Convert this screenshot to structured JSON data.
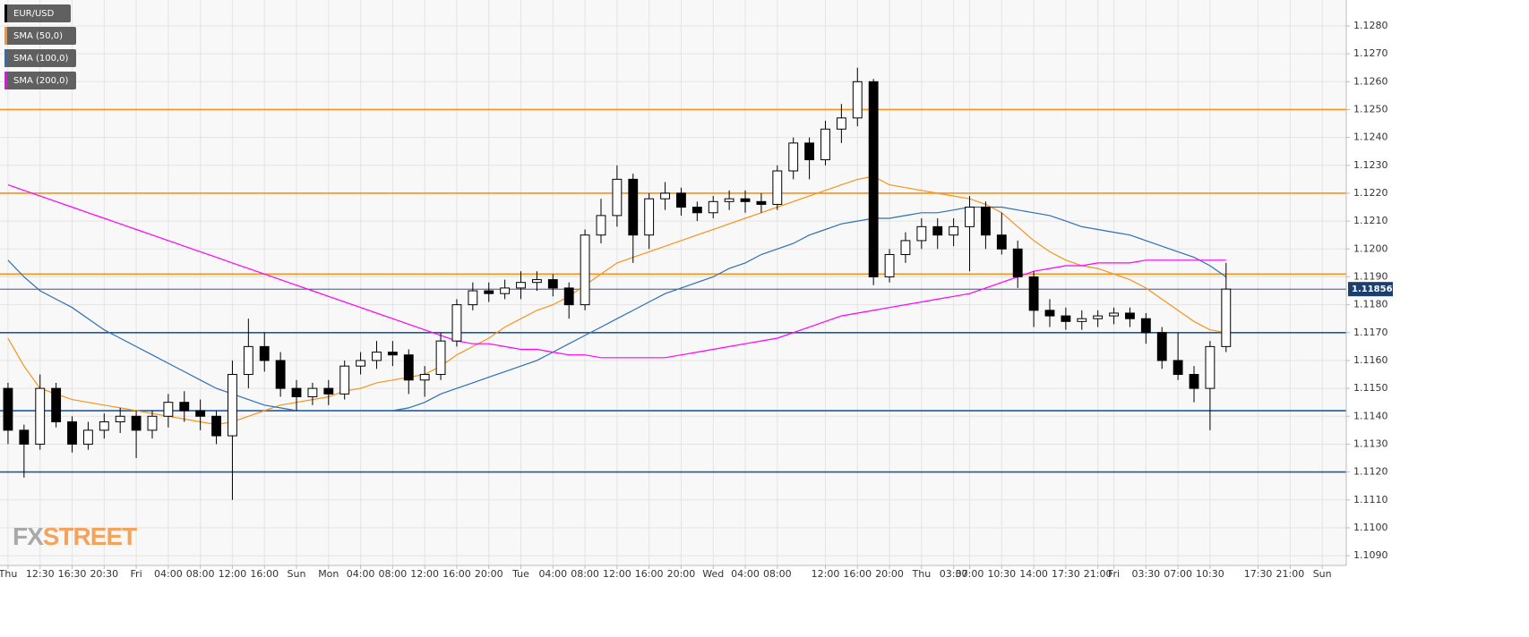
{
  "chart_data": {
    "type": "candlestick",
    "categories": [
      "Thu",
      null,
      "12:30",
      null,
      "16:30",
      null,
      "20:30",
      null,
      "Fri",
      null,
      "04:00",
      null,
      "08:00",
      null,
      "12:00",
      null,
      "16:00",
      null,
      "Sun",
      null,
      "Mon",
      null,
      "04:00",
      null,
      "08:00",
      null,
      "12:00",
      null,
      "16:00",
      null,
      "20:00",
      null,
      "Tue",
      null,
      "04:00",
      null,
      "08:00",
      null,
      "12:00",
      null,
      "16:00",
      null,
      "20:00",
      null,
      "Wed",
      null,
      "04:00",
      null,
      "08:00",
      null,
      null,
      "12:00",
      null,
      "16:00",
      null,
      "20:00",
      null,
      "Thu",
      null,
      "03:30",
      "07:00",
      null,
      "10:30",
      null,
      "14:00",
      null,
      "17:30",
      null,
      "21:00",
      "Fri",
      null,
      "03:30",
      null,
      "07:00",
      null,
      "10:30",
      null,
      null,
      "17:30",
      null,
      "21:00",
      null,
      "Sun",
      null
    ],
    "series": [
      {
        "name": "EUR/USD",
        "color": "#000000",
        "open": [
          1.115,
          1.1135,
          1.113,
          1.115,
          1.1138,
          1.113,
          1.1135,
          1.1138,
          1.114,
          1.1135,
          1.114,
          1.1145,
          1.1142,
          1.114,
          1.1133,
          1.1155,
          1.1165,
          1.116,
          1.115,
          1.1147,
          1.115,
          1.1148,
          1.1158,
          1.116,
          1.1163,
          1.1162,
          1.1153,
          1.1155,
          1.1167,
          1.118,
          1.1185,
          1.1184,
          1.1186,
          1.1188,
          1.1189,
          1.1186,
          1.118,
          1.1205,
          1.1212,
          1.1225,
          1.1205,
          1.1218,
          1.122,
          1.1215,
          1.1213,
          1.1217,
          1.1218,
          1.1217,
          1.1216,
          1.1228,
          1.1238,
          1.1232,
          1.1243,
          1.1247,
          1.126,
          1.119,
          1.1198,
          1.1203,
          1.1208,
          1.1205,
          1.1208,
          1.1215,
          1.1205,
          1.12,
          1.119,
          1.1178,
          1.1176,
          1.1174,
          1.1175,
          1.1176,
          1.1177,
          1.1175,
          1.117,
          1.116,
          1.1155,
          1.115,
          1.1165,
          null,
          null,
          null,
          null,
          null,
          null,
          null
        ],
        "high": [
          1.1152,
          1.1137,
          1.1155,
          1.1152,
          1.114,
          1.1138,
          1.1141,
          1.1143,
          1.1142,
          1.1142,
          1.1148,
          1.1149,
          1.1146,
          1.1142,
          1.116,
          1.1175,
          1.117,
          1.1163,
          1.1153,
          1.1152,
          1.1153,
          1.116,
          1.1163,
          1.1167,
          1.1167,
          1.1164,
          1.1158,
          1.117,
          1.1182,
          1.1188,
          1.1188,
          1.1189,
          1.1192,
          1.1192,
          1.1191,
          1.1188,
          1.1207,
          1.1218,
          1.123,
          1.1227,
          1.122,
          1.1224,
          1.1222,
          1.1217,
          1.1219,
          1.1221,
          1.1221,
          1.122,
          1.123,
          1.124,
          1.124,
          1.1246,
          1.1252,
          1.1265,
          1.1261,
          1.12,
          1.1206,
          1.1211,
          1.1211,
          1.1211,
          1.1219,
          1.1217,
          1.1213,
          1.1203,
          1.1192,
          1.1182,
          1.1179,
          1.1178,
          1.1178,
          1.1179,
          1.1179,
          1.1177,
          1.1172,
          1.117,
          1.1158,
          1.1167,
          1.1195,
          null,
          null,
          null,
          null,
          null,
          null,
          null
        ],
        "low": [
          1.113,
          1.1118,
          1.1128,
          1.1136,
          1.1127,
          1.1128,
          1.1132,
          1.1134,
          1.1125,
          1.1132,
          1.1136,
          1.1138,
          1.1135,
          1.113,
          1.111,
          1.115,
          1.1156,
          1.1147,
          1.1142,
          1.1144,
          1.1144,
          1.1146,
          1.1155,
          1.1157,
          1.1158,
          1.1148,
          1.1147,
          1.1153,
          1.1165,
          1.1178,
          1.1181,
          1.1182,
          1.1182,
          1.1185,
          1.1183,
          1.1175,
          1.1178,
          1.1202,
          1.1208,
          1.1195,
          1.12,
          1.1214,
          1.1212,
          1.121,
          1.1211,
          1.1214,
          1.1213,
          1.1213,
          1.1214,
          1.1225,
          1.1225,
          1.123,
          1.1238,
          1.1244,
          1.1187,
          1.1188,
          1.1195,
          1.12,
          1.12,
          1.1201,
          1.1192,
          1.12,
          1.1198,
          1.1186,
          1.1172,
          1.1172,
          1.1171,
          1.1171,
          1.1172,
          1.1173,
          1.1172,
          1.1166,
          1.1157,
          1.1153,
          1.1145,
          1.1135,
          1.1163,
          null,
          null,
          null,
          null,
          null,
          null,
          null
        ],
        "close": [
          1.1135,
          1.113,
          1.115,
          1.1138,
          1.113,
          1.1135,
          1.1138,
          1.114,
          1.1135,
          1.114,
          1.1145,
          1.1142,
          1.114,
          1.1133,
          1.1155,
          1.1165,
          1.116,
          1.115,
          1.1147,
          1.115,
          1.1148,
          1.1158,
          1.116,
          1.1163,
          1.1162,
          1.1153,
          1.1155,
          1.1167,
          1.118,
          1.1185,
          1.1184,
          1.1186,
          1.1188,
          1.1189,
          1.1186,
          1.118,
          1.1205,
          1.1212,
          1.1225,
          1.1205,
          1.1218,
          1.122,
          1.1215,
          1.1213,
          1.1217,
          1.1218,
          1.1217,
          1.1216,
          1.1228,
          1.1238,
          1.1232,
          1.1243,
          1.1247,
          1.126,
          1.119,
          1.1198,
          1.1203,
          1.1208,
          1.1205,
          1.1208,
          1.1215,
          1.1205,
          1.12,
          1.119,
          1.1178,
          1.1176,
          1.1174,
          1.1175,
          1.1176,
          1.1177,
          1.1175,
          1.117,
          1.116,
          1.1155,
          1.115,
          1.1165,
          1.11856,
          null,
          null,
          null,
          null,
          null,
          null,
          null
        ]
      },
      {
        "name": "SMA (50,0)",
        "color": "#f7931e",
        "values": [
          1.1168,
          1.1158,
          1.115,
          1.1148,
          1.1146,
          1.1145,
          1.1144,
          1.1143,
          1.1142,
          1.1141,
          1.114,
          1.1139,
          1.1138,
          1.1137,
          1.1138,
          1.114,
          1.1142,
          1.1144,
          1.1145,
          1.1146,
          1.1147,
          1.1149,
          1.115,
          1.1152,
          1.1153,
          1.1154,
          1.1155,
          1.1158,
          1.1162,
          1.1165,
          1.1168,
          1.1172,
          1.1175,
          1.1178,
          1.118,
          1.1183,
          1.1187,
          1.1191,
          1.1195,
          1.1197,
          1.1199,
          1.1201,
          1.1203,
          1.1205,
          1.1207,
          1.1209,
          1.1211,
          1.1213,
          1.1215,
          1.1217,
          1.1219,
          1.1221,
          1.1223,
          1.1225,
          1.1226,
          1.1223,
          1.1222,
          1.1221,
          1.122,
          1.1219,
          1.1218,
          1.1216,
          1.1213,
          1.1208,
          1.1203,
          1.1199,
          1.1196,
          1.1194,
          1.1193,
          1.1191,
          1.1189,
          1.1186,
          1.1182,
          1.1178,
          1.1174,
          1.1171,
          1.117,
          null,
          null,
          null,
          null,
          null,
          null,
          null
        ]
      },
      {
        "name": "SMA (100,0)",
        "color": "#2d6fb5",
        "values": [
          1.1196,
          1.119,
          1.1185,
          1.1182,
          1.1179,
          1.1175,
          1.1171,
          1.1168,
          1.1165,
          1.1162,
          1.1159,
          1.1156,
          1.1153,
          1.115,
          1.1148,
          1.1146,
          1.1144,
          1.1143,
          1.1142,
          1.1142,
          1.1142,
          1.1142,
          1.1142,
          1.1142,
          1.1142,
          1.1143,
          1.1145,
          1.1148,
          1.115,
          1.1152,
          1.1154,
          1.1156,
          1.1158,
          1.116,
          1.1163,
          1.1166,
          1.1169,
          1.1172,
          1.1175,
          1.1178,
          1.1181,
          1.1184,
          1.1186,
          1.1188,
          1.119,
          1.1193,
          1.1195,
          1.1198,
          1.12,
          1.1202,
          1.1205,
          1.1207,
          1.1209,
          1.121,
          1.1211,
          1.1211,
          1.1212,
          1.1213,
          1.1213,
          1.1214,
          1.1215,
          1.1215,
          1.1215,
          1.1214,
          1.1213,
          1.1212,
          1.121,
          1.1208,
          1.1207,
          1.1206,
          1.1205,
          1.1203,
          1.1201,
          1.1199,
          1.1197,
          1.1194,
          1.119,
          null,
          null,
          null,
          null,
          null,
          null,
          null
        ]
      },
      {
        "name": "SMA (200,0)",
        "color": "#ff00ff",
        "values": [
          1.1223,
          1.1221,
          1.1219,
          1.1217,
          1.1215,
          1.1213,
          1.1211,
          1.1209,
          1.1207,
          1.1205,
          1.1203,
          1.1201,
          1.1199,
          1.1197,
          1.1195,
          1.1193,
          1.1191,
          1.1189,
          1.1187,
          1.1185,
          1.1183,
          1.1181,
          1.1179,
          1.1177,
          1.1175,
          1.1173,
          1.1171,
          1.1169,
          1.1167,
          1.1166,
          1.1166,
          1.1165,
          1.1164,
          1.1164,
          1.1163,
          1.1162,
          1.1162,
          1.1161,
          1.1161,
          1.1161,
          1.1161,
          1.1161,
          1.1162,
          1.1163,
          1.1164,
          1.1165,
          1.1166,
          1.1167,
          1.1168,
          1.117,
          1.1172,
          1.1174,
          1.1176,
          1.1177,
          1.1178,
          1.1179,
          1.118,
          1.1181,
          1.1182,
          1.1183,
          1.1184,
          1.1186,
          1.1188,
          1.119,
          1.1192,
          1.1193,
          1.1194,
          1.1194,
          1.1195,
          1.1195,
          1.1195,
          1.1196,
          1.1196,
          1.1196,
          1.1196,
          1.1196,
          1.1196,
          null,
          null,
          null,
          null,
          null,
          null,
          null
        ]
      }
    ],
    "levels": [
      {
        "value": 1.125,
        "color": "#f7931e"
      },
      {
        "value": 1.122,
        "color": "#f7931e"
      },
      {
        "value": 1.1191,
        "color": "#f7931e"
      },
      {
        "value": 1.117,
        "color": "#1f5a9e"
      },
      {
        "value": 1.1142,
        "color": "#1f5a9e"
      },
      {
        "value": 1.112,
        "color": "#1f5a9e"
      }
    ],
    "last_price": 1.11856,
    "last_price_color": "#1d3f6e",
    "ylim": [
      1.10865,
      1.12893
    ],
    "yticks": [
      {
        "value": 1.109,
        "label": "1.1090"
      },
      {
        "value": 1.11,
        "label": "1.1100"
      },
      {
        "value": 1.111,
        "label": "1.1110"
      },
      {
        "value": 1.112,
        "label": "1.1120"
      },
      {
        "value": 1.113,
        "label": "1.1130"
      },
      {
        "value": 1.114,
        "label": "1.1140"
      },
      {
        "value": 1.115,
        "label": "1.1150"
      },
      {
        "value": 1.116,
        "label": "1.1160"
      },
      {
        "value": 1.117,
        "label": "1.1170"
      },
      {
        "value": 1.118,
        "label": "1.1180"
      },
      {
        "value": 1.119,
        "label": "1.1190"
      },
      {
        "value": 1.12,
        "label": "1.1200"
      },
      {
        "value": 1.121,
        "label": "1.1210"
      },
      {
        "value": 1.122,
        "label": "1.1220"
      },
      {
        "value": 1.123,
        "label": "1.1230"
      },
      {
        "value": 1.124,
        "label": "1.1240"
      },
      {
        "value": 1.125,
        "label": "1.1250"
      },
      {
        "value": 1.126,
        "label": "1.1260"
      },
      {
        "value": 1.127,
        "label": "1.1270"
      },
      {
        "value": 1.128,
        "label": "1.1280"
      }
    ],
    "grid": true,
    "legend": "top-left",
    "watermark": [
      "FX",
      "STREET"
    ]
  }
}
